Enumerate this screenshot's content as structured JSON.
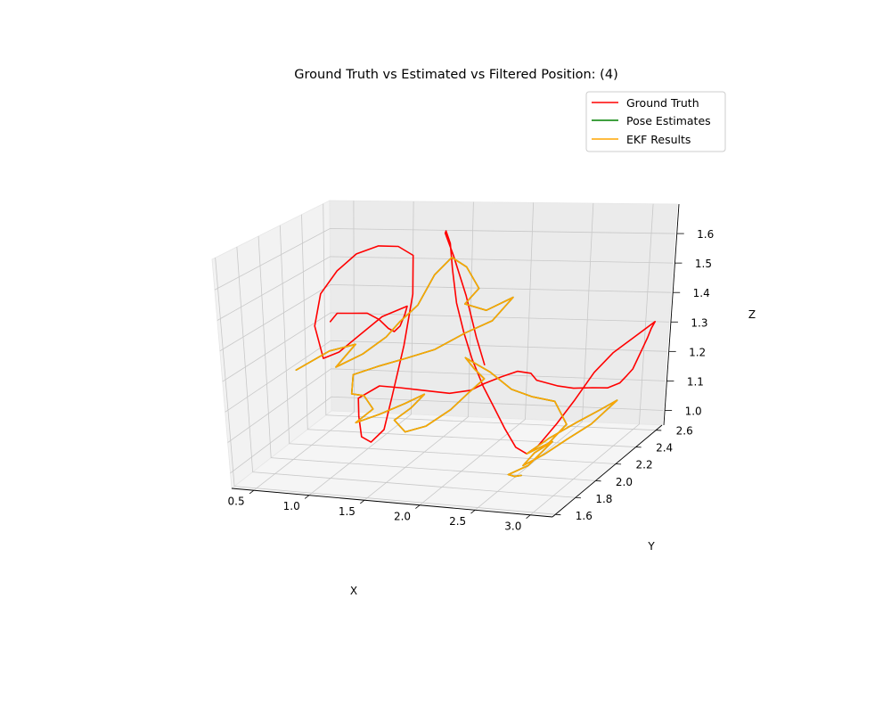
{
  "chart_data": {
    "type": "line",
    "projection": "3d",
    "title": "Ground Truth vs Estimated vs Filtered Position: (4)",
    "xlabel": "X",
    "ylabel": "Y",
    "zlabel": "Z",
    "x_ticks": [
      "0.5",
      "1.0",
      "1.5",
      "2.0",
      "2.5",
      "3.0"
    ],
    "y_ticks": [
      "1.6",
      "1.8",
      "2.0",
      "2.2",
      "2.4",
      "2.6"
    ],
    "z_ticks": [
      "1.0",
      "1.1",
      "1.2",
      "1.3",
      "1.4",
      "1.5",
      "1.6"
    ],
    "xlim": [
      0.3,
      3.2
    ],
    "ylim": [
      1.57,
      2.66
    ],
    "zlim": [
      0.95,
      1.7
    ],
    "grid": true,
    "legend_position": "upper right",
    "series": [
      {
        "name": "Ground Truth",
        "color": "#ff0000",
        "points": [
          [
            0.52,
            2.4,
            1.33
          ],
          [
            0.58,
            2.4,
            1.36
          ],
          [
            0.7,
            2.41,
            1.36
          ],
          [
            0.82,
            2.42,
            1.36
          ],
          [
            0.92,
            2.42,
            1.34
          ],
          [
            1.0,
            2.42,
            1.31
          ],
          [
            1.05,
            2.42,
            1.3
          ],
          [
            1.1,
            2.42,
            1.32
          ],
          [
            1.14,
            2.42,
            1.36
          ],
          [
            1.16,
            2.42,
            1.39
          ],
          [
            1.05,
            2.3,
            1.38
          ],
          [
            0.95,
            2.2,
            1.34
          ],
          [
            0.85,
            2.1,
            1.3
          ],
          [
            0.8,
            2.0,
            1.3
          ],
          [
            0.78,
            1.95,
            1.42
          ],
          [
            0.84,
            1.95,
            1.53
          ],
          [
            0.94,
            2.0,
            1.6
          ],
          [
            1.06,
            2.05,
            1.65
          ],
          [
            1.2,
            2.1,
            1.67
          ],
          [
            1.32,
            2.15,
            1.66
          ],
          [
            1.4,
            2.2,
            1.62
          ],
          [
            1.44,
            2.15,
            1.5
          ],
          [
            1.45,
            2.05,
            1.35
          ],
          [
            1.43,
            1.95,
            1.2
          ],
          [
            1.4,
            1.9,
            1.1
          ],
          [
            1.3,
            1.88,
            1.06
          ],
          [
            1.2,
            1.9,
            1.07
          ],
          [
            1.12,
            1.97,
            1.12
          ],
          [
            1.05,
            2.05,
            1.16
          ],
          [
            1.15,
            2.15,
            1.18
          ],
          [
            1.3,
            2.18,
            1.17
          ],
          [
            1.5,
            2.2,
            1.16
          ],
          [
            1.7,
            2.22,
            1.15
          ],
          [
            1.9,
            2.2,
            1.17
          ],
          [
            2.0,
            2.22,
            1.19
          ],
          [
            2.1,
            2.28,
            1.2
          ],
          [
            2.2,
            2.32,
            1.21
          ],
          [
            2.3,
            2.34,
            1.2
          ],
          [
            2.36,
            2.33,
            1.18
          ],
          [
            2.5,
            2.38,
            1.15
          ],
          [
            2.6,
            2.43,
            1.13
          ],
          [
            2.72,
            2.48,
            1.12
          ],
          [
            2.82,
            2.52,
            1.11
          ],
          [
            2.9,
            2.55,
            1.12
          ],
          [
            2.94,
            2.57,
            1.14
          ],
          [
            2.98,
            2.58,
            1.16
          ],
          [
            3.0,
            2.6,
            1.19
          ],
          [
            3.02,
            2.62,
            1.22
          ],
          [
            3.04,
            2.64,
            1.25
          ],
          [
            3.06,
            2.65,
            1.28
          ],
          [
            3.08,
            2.66,
            1.3
          ],
          [
            2.95,
            2.6,
            1.26
          ],
          [
            2.85,
            2.52,
            1.23
          ],
          [
            2.78,
            2.42,
            1.19
          ],
          [
            2.7,
            2.33,
            1.12
          ],
          [
            2.62,
            2.25,
            1.06
          ],
          [
            2.52,
            2.18,
            1.0
          ],
          [
            2.45,
            2.15,
            0.98
          ],
          [
            2.35,
            2.15,
            1.0
          ],
          [
            2.25,
            2.15,
            1.06
          ],
          [
            2.15,
            2.15,
            1.13
          ],
          [
            2.05,
            2.15,
            1.2
          ],
          [
            1.95,
            2.15,
            1.29
          ],
          [
            1.85,
            2.18,
            1.37
          ],
          [
            1.75,
            2.22,
            1.46
          ],
          [
            1.66,
            2.28,
            1.56
          ],
          [
            1.58,
            2.35,
            1.63
          ],
          [
            1.5,
            2.4,
            1.66
          ],
          [
            1.45,
            2.45,
            1.64
          ],
          [
            1.48,
            2.5,
            1.55
          ],
          [
            1.55,
            2.55,
            1.4
          ],
          [
            1.62,
            2.58,
            1.25
          ],
          [
            1.68,
            2.6,
            1.15
          ]
        ]
      },
      {
        "name": "Pose Estimates",
        "color": "#008000",
        "points": [
          [
            0.3,
            2.3,
            1.18
          ],
          [
            0.55,
            2.35,
            1.24
          ],
          [
            0.75,
            2.38,
            1.26
          ],
          [
            0.62,
            2.33,
            1.19
          ],
          [
            0.82,
            2.37,
            1.23
          ],
          [
            0.98,
            2.42,
            1.28
          ],
          [
            1.08,
            2.44,
            1.33
          ],
          [
            1.2,
            2.48,
            1.38
          ],
          [
            1.28,
            2.55,
            1.47
          ],
          [
            1.38,
            2.6,
            1.52
          ],
          [
            1.55,
            2.55,
            1.5
          ],
          [
            1.7,
            2.5,
            1.44
          ],
          [
            1.6,
            2.48,
            1.39
          ],
          [
            1.75,
            2.52,
            1.36
          ],
          [
            1.95,
            2.55,
            1.4
          ],
          [
            1.82,
            2.5,
            1.33
          ],
          [
            1.64,
            2.44,
            1.3
          ],
          [
            1.45,
            2.36,
            1.26
          ],
          [
            1.25,
            2.3,
            1.24
          ],
          [
            1.05,
            2.25,
            1.22
          ],
          [
            0.88,
            2.2,
            1.2
          ],
          [
            0.95,
            2.1,
            1.16
          ],
          [
            1.1,
            2.05,
            1.17
          ],
          [
            1.22,
            2.0,
            1.14
          ],
          [
            1.1,
            1.96,
            1.1
          ],
          [
            1.3,
            1.98,
            1.13
          ],
          [
            1.48,
            2.02,
            1.16
          ],
          [
            1.6,
            2.08,
            1.18
          ],
          [
            1.45,
            2.12,
            1.12
          ],
          [
            1.32,
            2.1,
            1.08
          ],
          [
            1.5,
            2.0,
            1.07
          ],
          [
            1.7,
            1.98,
            1.1
          ],
          [
            1.88,
            2.02,
            1.15
          ],
          [
            2.0,
            2.06,
            1.2
          ],
          [
            2.1,
            2.1,
            1.24
          ],
          [
            1.98,
            2.14,
            1.26
          ],
          [
            1.85,
            2.2,
            1.28
          ],
          [
            2.05,
            2.22,
            1.23
          ],
          [
            2.22,
            2.24,
            1.17
          ],
          [
            2.38,
            2.27,
            1.14
          ],
          [
            2.55,
            2.3,
            1.12
          ],
          [
            2.68,
            2.28,
            1.05
          ],
          [
            2.58,
            2.22,
            1.0
          ],
          [
            2.45,
            2.15,
            0.98
          ],
          [
            2.62,
            2.18,
            1.03
          ],
          [
            2.8,
            2.24,
            1.07
          ],
          [
            2.95,
            2.3,
            1.1
          ],
          [
            3.05,
            2.35,
            1.12
          ],
          [
            2.88,
            2.3,
            1.05
          ],
          [
            2.72,
            2.24,
            1.01
          ],
          [
            2.6,
            2.16,
            0.98
          ],
          [
            2.48,
            2.08,
            0.96
          ],
          [
            2.56,
            2.1,
            1.0
          ],
          [
            2.68,
            2.14,
            1.03
          ],
          [
            2.55,
            2.05,
            0.97
          ],
          [
            2.42,
            2.0,
            0.95
          ],
          [
            2.52,
            1.95,
            0.96
          ],
          [
            2.62,
            1.9,
            0.98
          ]
        ]
      },
      {
        "name": "EKF Results",
        "color": "#ffa500",
        "points": [
          [
            0.3,
            2.3,
            1.18
          ],
          [
            0.55,
            2.35,
            1.24
          ],
          [
            0.75,
            2.38,
            1.26
          ],
          [
            0.62,
            2.33,
            1.19
          ],
          [
            0.82,
            2.37,
            1.23
          ],
          [
            0.98,
            2.42,
            1.28
          ],
          [
            1.08,
            2.44,
            1.33
          ],
          [
            1.2,
            2.48,
            1.38
          ],
          [
            1.28,
            2.55,
            1.47
          ],
          [
            1.38,
            2.6,
            1.52
          ],
          [
            1.55,
            2.55,
            1.5
          ],
          [
            1.7,
            2.5,
            1.44
          ],
          [
            1.6,
            2.48,
            1.39
          ],
          [
            1.75,
            2.52,
            1.36
          ],
          [
            1.95,
            2.55,
            1.4
          ],
          [
            1.82,
            2.5,
            1.33
          ],
          [
            1.64,
            2.44,
            1.3
          ],
          [
            1.45,
            2.36,
            1.26
          ],
          [
            1.25,
            2.3,
            1.24
          ],
          [
            1.05,
            2.25,
            1.22
          ],
          [
            0.88,
            2.2,
            1.2
          ],
          [
            0.95,
            2.1,
            1.16
          ],
          [
            1.1,
            2.05,
            1.17
          ],
          [
            1.22,
            2.0,
            1.14
          ],
          [
            1.1,
            1.96,
            1.1
          ],
          [
            1.3,
            1.98,
            1.13
          ],
          [
            1.48,
            2.02,
            1.16
          ],
          [
            1.6,
            2.08,
            1.18
          ],
          [
            1.45,
            2.12,
            1.12
          ],
          [
            1.32,
            2.1,
            1.08
          ],
          [
            1.5,
            2.0,
            1.07
          ],
          [
            1.7,
            1.98,
            1.1
          ],
          [
            1.88,
            2.02,
            1.15
          ],
          [
            2.0,
            2.06,
            1.2
          ],
          [
            2.1,
            2.1,
            1.24
          ],
          [
            1.98,
            2.14,
            1.26
          ],
          [
            1.85,
            2.2,
            1.28
          ],
          [
            2.05,
            2.22,
            1.23
          ],
          [
            2.22,
            2.24,
            1.17
          ],
          [
            2.38,
            2.27,
            1.14
          ],
          [
            2.55,
            2.3,
            1.12
          ],
          [
            2.68,
            2.28,
            1.05
          ],
          [
            2.58,
            2.22,
            1.0
          ],
          [
            2.45,
            2.15,
            0.98
          ],
          [
            2.62,
            2.18,
            1.03
          ],
          [
            2.8,
            2.24,
            1.07
          ],
          [
            2.95,
            2.3,
            1.1
          ],
          [
            3.05,
            2.35,
            1.12
          ],
          [
            2.88,
            2.3,
            1.05
          ],
          [
            2.72,
            2.24,
            1.01
          ],
          [
            2.6,
            2.16,
            0.98
          ],
          [
            2.48,
            2.08,
            0.96
          ],
          [
            2.56,
            2.1,
            1.0
          ],
          [
            2.68,
            2.14,
            1.03
          ],
          [
            2.55,
            2.05,
            0.97
          ],
          [
            2.42,
            2.0,
            0.95
          ],
          [
            2.52,
            1.95,
            0.96
          ],
          [
            2.62,
            1.9,
            0.98
          ]
        ]
      }
    ]
  }
}
